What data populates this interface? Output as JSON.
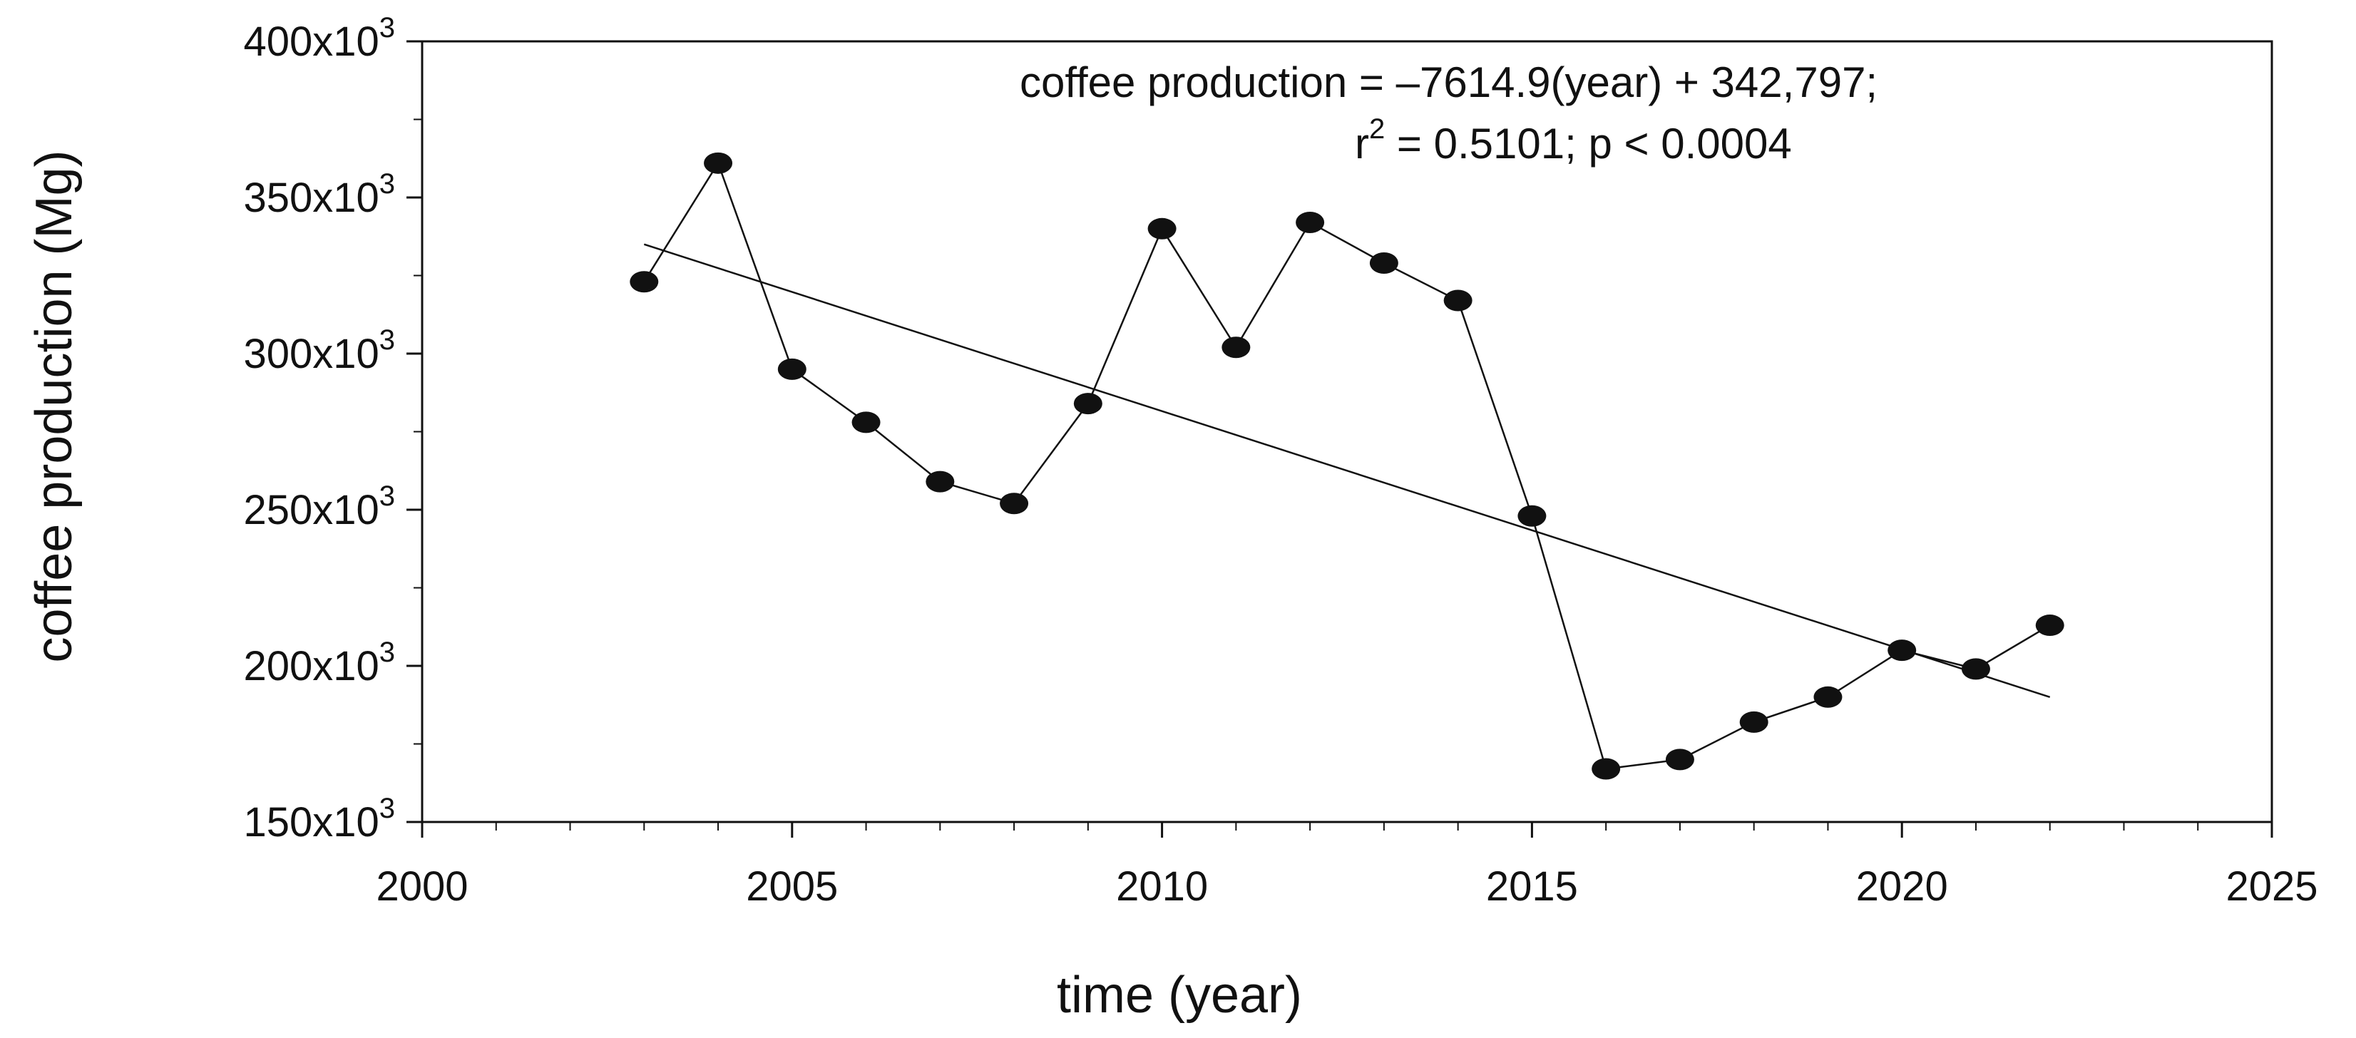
{
  "chart_data": {
    "type": "line",
    "xlabel": "time (year)",
    "ylabel": "coffee production (Mg)",
    "xlim": [
      2000,
      2025
    ],
    "ylim": [
      150000,
      400000
    ],
    "x_ticks": [
      2000,
      2005,
      2010,
      2015,
      2020,
      2025
    ],
    "x_tick_labels": [
      "2000",
      "2005",
      "2010",
      "2015",
      "2020",
      "2025"
    ],
    "y_ticks": [
      150000,
      200000,
      250000,
      300000,
      350000,
      400000
    ],
    "y_tick_labels": [
      {
        "base": "150x10",
        "exp": "3"
      },
      {
        "base": "200x10",
        "exp": "3"
      },
      {
        "base": "250x10",
        "exp": "3"
      },
      {
        "base": "300x10",
        "exp": "3"
      },
      {
        "base": "350x10",
        "exp": "3"
      },
      {
        "base": "400x10",
        "exp": "3"
      }
    ],
    "series": [
      {
        "name": "coffee production",
        "x": [
          2003,
          2004,
          2005,
          2006,
          2007,
          2008,
          2009,
          2010,
          2011,
          2012,
          2013,
          2014,
          2015,
          2016,
          2017,
          2018,
          2019,
          2020,
          2021,
          2022
        ],
        "values": [
          323000,
          361000,
          295000,
          278000,
          259000,
          252000,
          284000,
          340000,
          302000,
          342000,
          329000,
          317000,
          248000,
          167000,
          170000,
          182000,
          190000,
          205000,
          199000,
          213000
        ]
      }
    ],
    "trendline": {
      "x": [
        2003,
        2022
      ],
      "values": [
        335000,
        190000
      ]
    },
    "annotation": {
      "line1": "coffee production = –7614.9(year) + 342,797;",
      "line2_prefix": "r",
      "line2_exp": "2",
      "line2_rest": " = 0.5101; p < 0.0004"
    }
  }
}
